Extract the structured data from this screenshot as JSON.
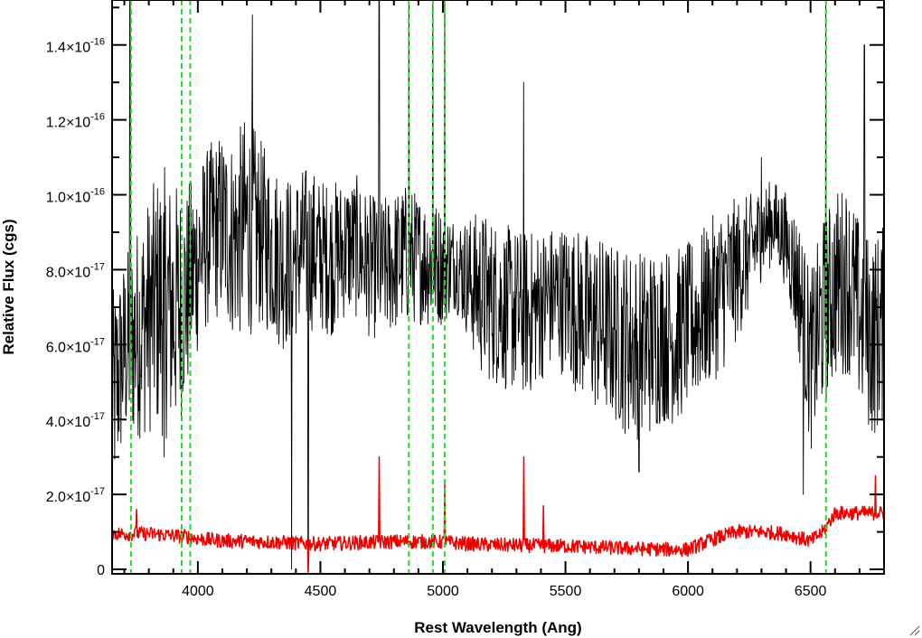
{
  "chart_data": {
    "type": "line",
    "title": "",
    "xlabel": "Rest Wavelength (Ang)",
    "ylabel": "Relative Flux (cgs)",
    "xlim": [
      3650,
      6800
    ],
    "ylim": [
      -1.2e-18,
      1.52e-16
    ],
    "x_ticks": [
      {
        "value": 4000,
        "label": "4000"
      },
      {
        "value": 4500,
        "label": "4500"
      },
      {
        "value": 5000,
        "label": "5000"
      },
      {
        "value": 5500,
        "label": "5500"
      },
      {
        "value": 6000,
        "label": "6000"
      },
      {
        "value": 6500,
        "label": "6500"
      }
    ],
    "y_ticks": [
      {
        "value": 0,
        "mant": "0",
        "exp": ""
      },
      {
        "value": 2e-17,
        "mant": "2.0×10",
        "exp": "-17"
      },
      {
        "value": 4e-17,
        "mant": "4.0×10",
        "exp": "-17"
      },
      {
        "value": 6e-17,
        "mant": "6.0×10",
        "exp": "-17"
      },
      {
        "value": 8e-17,
        "mant": "8.0×10",
        "exp": "-17"
      },
      {
        "value": 1e-16,
        "mant": "1.0×10",
        "exp": "-16"
      },
      {
        "value": 1.2e-16,
        "mant": "1.2×10",
        "exp": "-16"
      },
      {
        "value": 1.4e-16,
        "mant": "1.4×10",
        "exp": "-16"
      }
    ],
    "grid": false,
    "colors": {
      "flux": "#000000",
      "error": "#ee0000",
      "lines": "#22dd22"
    },
    "series": [
      {
        "role": "flux",
        "x": [
          3650,
          3700,
          3750,
          3800,
          3850,
          3900,
          3950,
          4000,
          4050,
          4100,
          4150,
          4200,
          4250,
          4300,
          4350,
          4400,
          4450,
          4500,
          4550,
          4600,
          4650,
          4700,
          4750,
          4800,
          4850,
          4900,
          4950,
          5000,
          5050,
          5100,
          5150,
          5200,
          5250,
          5300,
          5350,
          5400,
          5450,
          5500,
          5550,
          5600,
          5650,
          5700,
          5750,
          5800,
          5850,
          5900,
          5950,
          6000,
          6050,
          6100,
          6150,
          6200,
          6250,
          6300,
          6350,
          6400,
          6450,
          6500,
          6550,
          6600,
          6650,
          6700,
          6750,
          6800
        ],
        "y": [
          4.5e-17,
          5.8e-17,
          6.3e-17,
          6.8e-17,
          7.2e-17,
          6.9e-17,
          7.3e-17,
          8.3e-17,
          9e-17,
          9.2e-17,
          8.8e-17,
          9.2e-17,
          9e-17,
          8.6e-17,
          8.2e-17,
          8.4e-17,
          8.6e-17,
          8.4e-17,
          8.3e-17,
          8.6e-17,
          8.6e-17,
          8.1e-17,
          8e-17,
          8.2e-17,
          8.4e-17,
          8.3e-17,
          8.2e-17,
          8.1e-17,
          8.2e-17,
          7.8e-17,
          7.4e-17,
          7.2e-17,
          7e-17,
          6.9e-17,
          6.8e-17,
          7.1e-17,
          7.3e-17,
          7.2e-17,
          6.9e-17,
          6.6e-17,
          6.5e-17,
          6.3e-17,
          6.1e-17,
          6e-17,
          6.1e-17,
          6.3e-17,
          6.2e-17,
          6.5e-17,
          6.8e-17,
          7.2e-17,
          7.6e-17,
          8e-17,
          8.4e-17,
          9e-17,
          9.3e-17,
          8.8e-17,
          7.6e-17,
          5.5e-17,
          6.8e-17,
          7.6e-17,
          7.8e-17,
          6.8e-17,
          6.2e-17,
          6.5e-17
        ],
        "noise": [
          1.8e-17,
          1.6e-17,
          1.8e-17,
          2e-17,
          2.3e-17,
          2.2e-17,
          1.8e-17,
          1.6e-17,
          1.5e-17,
          1.6e-17,
          1.7e-17,
          1.9e-17,
          1.6e-17,
          1.5e-17,
          1.5e-17,
          1.4e-17,
          1.4e-17,
          1.3e-17,
          1.3e-17,
          1.2e-17,
          1.2e-17,
          1.2e-17,
          1.2e-17,
          1.2e-17,
          1.2e-17,
          1.1e-17,
          1.1e-17,
          1e-17,
          8e-18,
          1e-17,
          1.4e-17,
          1.4e-17,
          1.4e-17,
          1.4e-17,
          1.4e-17,
          1.3e-17,
          1.2e-17,
          1.3e-17,
          1.4e-17,
          1.5e-17,
          1.5e-17,
          1.5e-17,
          1.6e-17,
          1.6e-17,
          1.6e-17,
          1.5e-17,
          1.5e-17,
          1.4e-17,
          1.4e-17,
          1.4e-17,
          1.4e-17,
          1.2e-17,
          1e-17,
          8e-18,
          7e-18,
          8e-18,
          1.2e-17,
          1.5e-17,
          1.6e-17,
          1.6e-17,
          1.6e-17,
          1.6e-17,
          1.7e-17,
          1.7e-17
        ],
        "features": [
          {
            "x": 3723,
            "y": 1.55e-16
          },
          {
            "x": 3863,
            "y": 3e-17
          },
          {
            "x": 4223,
            "y": 1.48e-16
          },
          {
            "x": 4383,
            "y": 0
          },
          {
            "x": 4450,
            "y": 0
          },
          {
            "x": 4740,
            "y": 1.55e-16
          },
          {
            "x": 4861,
            "y": 1.55e-16
          },
          {
            "x": 4959,
            "y": 1.55e-16
          },
          {
            "x": 5007,
            "y": 1.55e-16
          },
          {
            "x": 5330,
            "y": 1.3e-16
          },
          {
            "x": 5800,
            "y": 2.6e-17
          },
          {
            "x": 6300,
            "y": 1.1e-16
          },
          {
            "x": 6470,
            "y": 2e-17
          },
          {
            "x": 6563,
            "y": 1.55e-16
          },
          {
            "x": 6720,
            "y": 1.4e-16
          }
        ]
      },
      {
        "role": "error",
        "x": [
          3650,
          3700,
          3750,
          3800,
          3850,
          3900,
          3950,
          4000,
          4100,
          4200,
          4300,
          4400,
          4500,
          4600,
          4700,
          4800,
          4900,
          5000,
          5100,
          5200,
          5300,
          5400,
          5500,
          5600,
          5700,
          5800,
          5900,
          6000,
          6100,
          6200,
          6300,
          6400,
          6500,
          6550,
          6600,
          6700,
          6800
        ],
        "y": [
          9.5e-18,
          9.5e-18,
          9.5e-18,
          9.5e-18,
          9.3e-18,
          9e-18,
          8.8e-18,
          8.2e-18,
          7.6e-18,
          7.5e-18,
          7.3e-18,
          7e-18,
          6.8e-18,
          7e-18,
          7.2e-18,
          7.4e-18,
          7.4e-18,
          7.3e-18,
          6.8e-18,
          6.5e-18,
          6.4e-18,
          6.3e-18,
          6.2e-18,
          6e-18,
          5.7e-18,
          5.5e-18,
          5.3e-18,
          5.3e-18,
          8e-18,
          1e-17,
          1e-17,
          9.5e-18,
          7.5e-18,
          1e-17,
          1.5e-17,
          1.5e-17,
          1.5e-17
        ],
        "noise": 1.2e-18,
        "features": [
          {
            "x": 3750,
            "y": 1.6e-17
          },
          {
            "x": 4450,
            "y": -1.2e-18
          },
          {
            "x": 4740,
            "y": 3e-17
          },
          {
            "x": 5007,
            "y": 2.3e-17
          },
          {
            "x": 5330,
            "y": 3e-17
          },
          {
            "x": 5410,
            "y": 1.7e-17
          },
          {
            "x": 6765,
            "y": 2.5e-17
          }
        ]
      }
    ],
    "vlines": [
      3727,
      3934,
      3969,
      4861,
      4959,
      5007,
      6563
    ]
  }
}
